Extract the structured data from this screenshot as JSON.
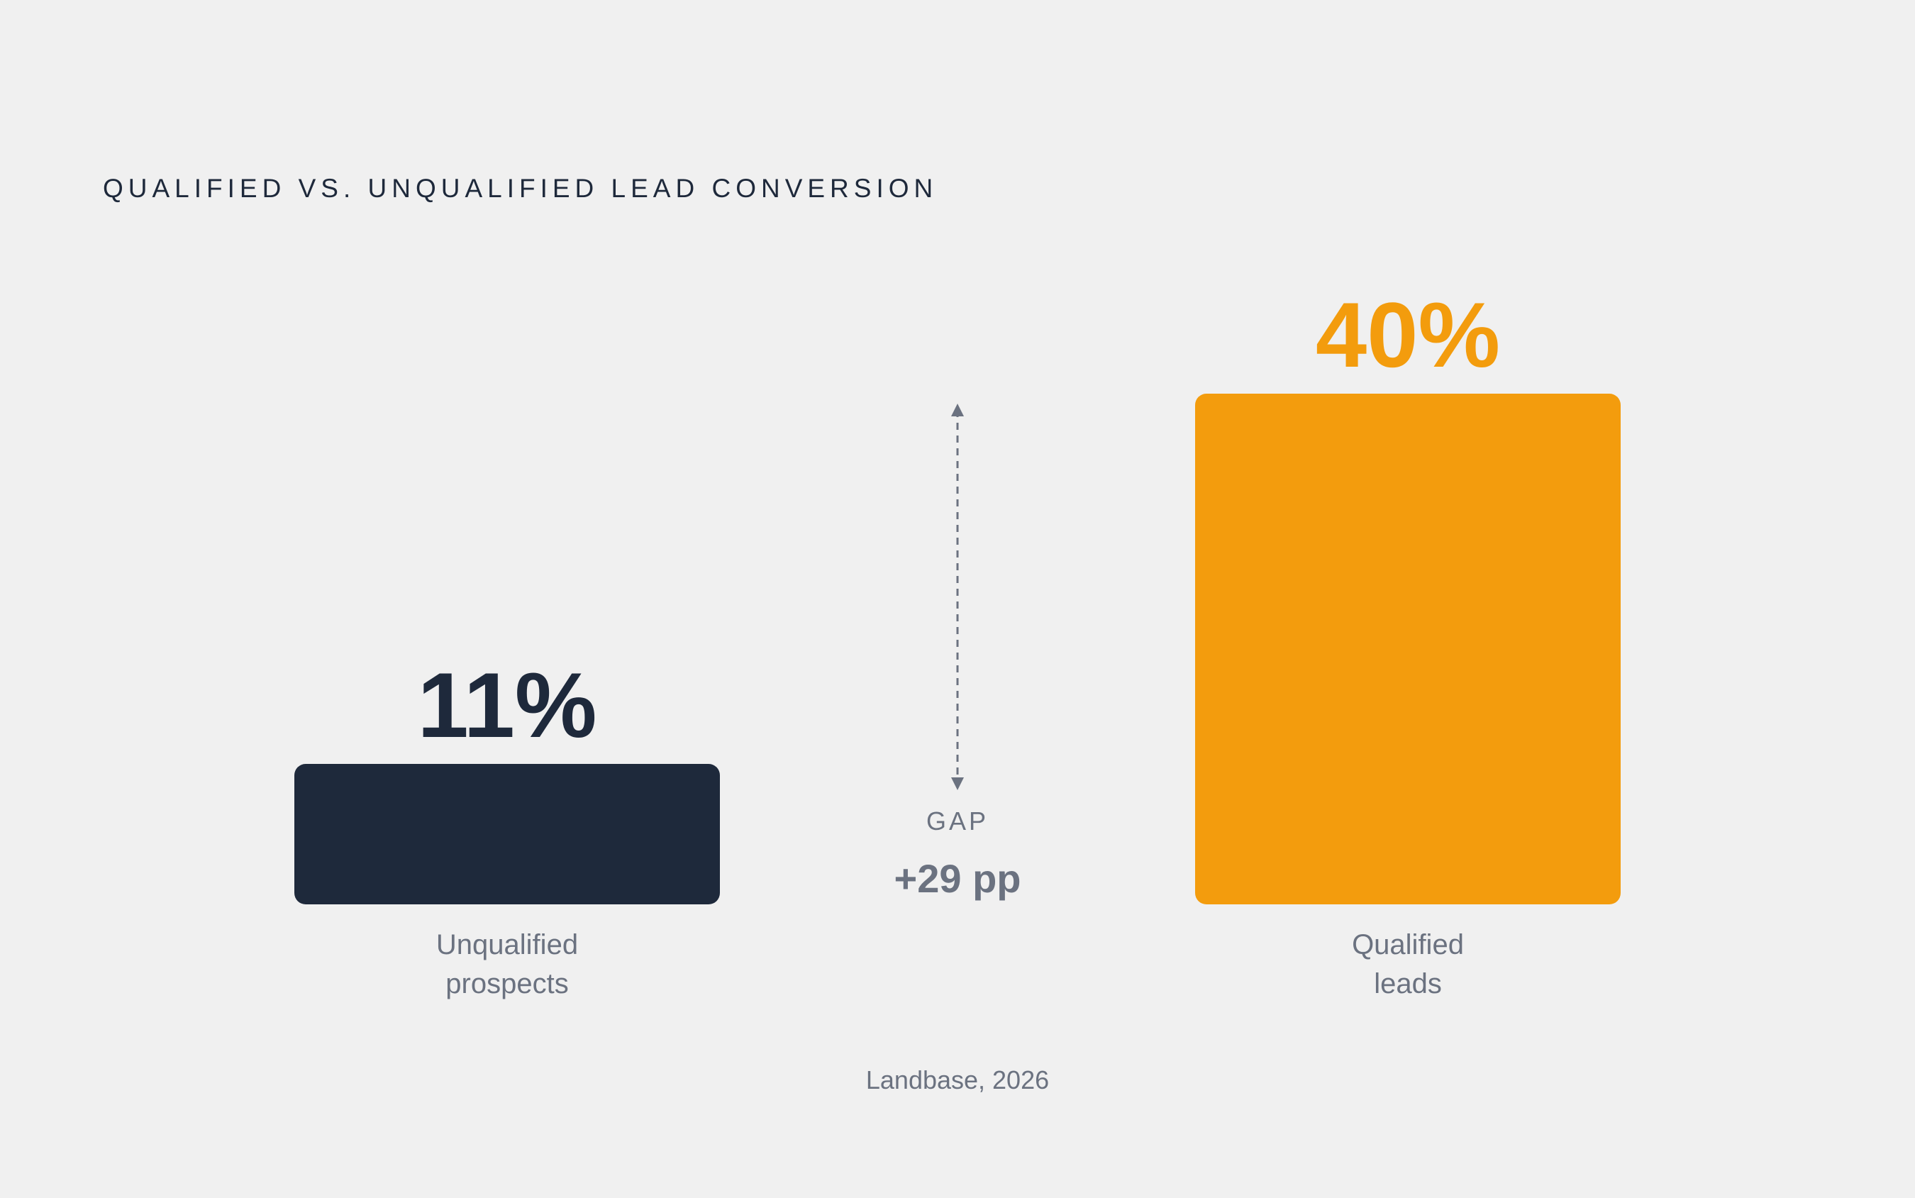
{
  "chart_data": {
    "type": "bar",
    "title": "QUALIFIED VS. UNQUALIFIED LEAD CONVERSION",
    "categories": [
      [
        "Unqualified",
        "prospects"
      ],
      [
        "Qualified",
        "leads"
      ]
    ],
    "values": [
      11,
      40
    ],
    "value_labels": [
      "11%",
      "40%"
    ],
    "colors": [
      "#1e293b",
      "#f39c0d"
    ],
    "label_colors": [
      "#1e293b",
      "#f39c0d"
    ],
    "unit": "%",
    "ylim": [
      0,
      40
    ],
    "grid": false,
    "annotation": {
      "label": "GAP",
      "value": "+29 pp",
      "color": "#6b7280"
    },
    "source": "Landbase, 2026"
  }
}
